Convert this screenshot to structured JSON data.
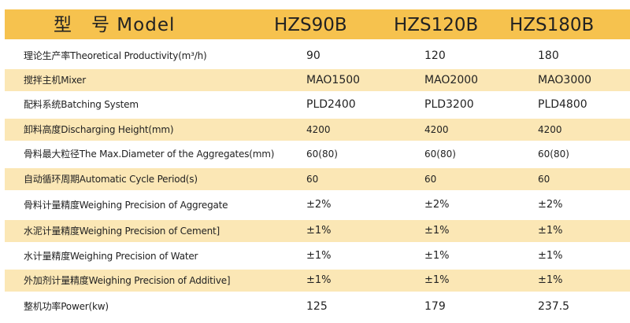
{
  "header": {
    "label": "型　号  Model",
    "models": [
      "HZS90B",
      "HZS120B",
      "HZS180B"
    ]
  },
  "rows": [
    {
      "label": "理论生产率Theoretical Productivity(m³/h)",
      "values": [
        "90",
        "120",
        "180"
      ]
    },
    {
      "label": "搅拌主机Mixer",
      "values": [
        "MAO1500",
        "MAO2000",
        "MAO3000"
      ]
    },
    {
      "label": "配料系统Batching System",
      "values": [
        "PLD2400",
        "PLD3200",
        "PLD4800"
      ]
    },
    {
      "label": "卸料高度Discharging Height(mm)",
      "values": [
        "4200",
        "4200",
        "4200"
      ]
    },
    {
      "label": "骨料最大粒径The Max.Diameter of the Aggregates(mm)",
      "values": [
        "60(80)",
        "60(80)",
        "60(80)"
      ]
    },
    {
      "label": "自动循环周期Automatic Cycle Period(s)",
      "values": [
        "60",
        "60",
        "60"
      ]
    },
    {
      "label": "骨料计量精度Weighing Precision of Aggregate",
      "values": [
        "±2%",
        "±2%",
        "±2%"
      ]
    },
    {
      "label": "水泥计量精度Weighing Precision of Cement]",
      "values": [
        "±1%",
        "±1%",
        "±1%"
      ]
    },
    {
      "label": "水计量精度Weighing Precision of Water",
      "values": [
        "±1%",
        "±1%",
        "±1%"
      ]
    },
    {
      "label": "外加剂计量精度Weighing Precision of Additive]",
      "values": [
        "±1%",
        "±1%",
        "±1%"
      ]
    },
    {
      "label": "整机功率Power(kw)",
      "values": [
        "125",
        "179",
        "237.5"
      ]
    }
  ],
  "colors": {
    "header_bg": "#f6c24e",
    "alt_row_bg": "#fbe7b5",
    "text": "#222222"
  }
}
